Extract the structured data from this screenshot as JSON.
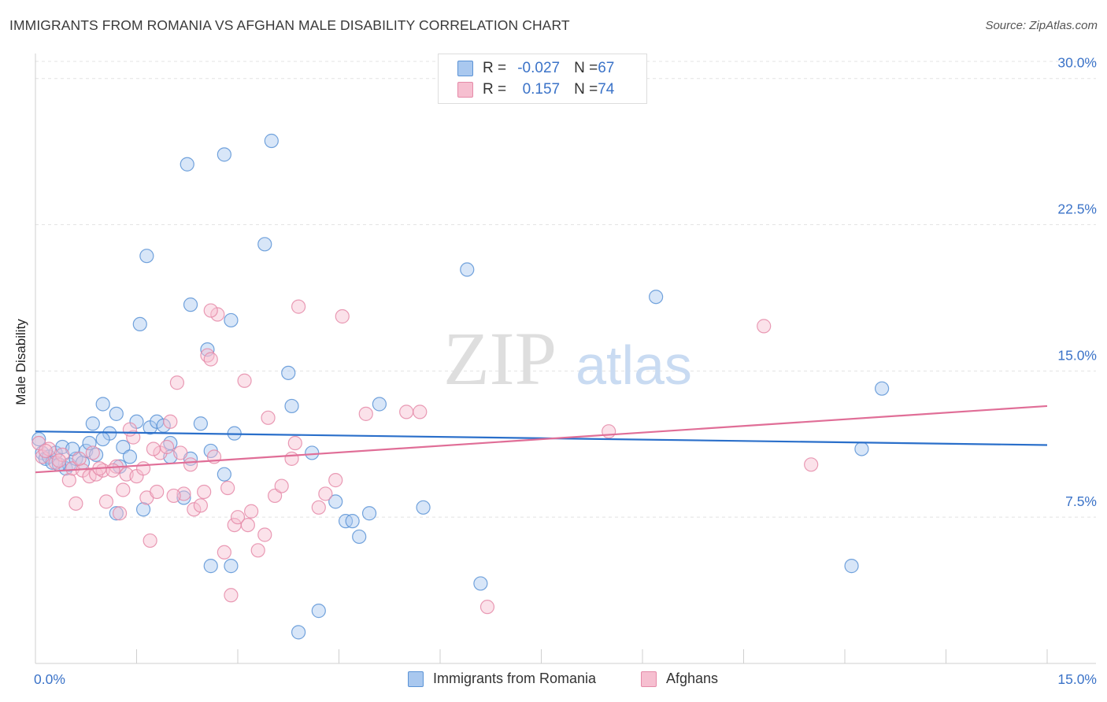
{
  "header": {
    "title": "IMMIGRANTS FROM ROMANIA VS AFGHAN MALE DISABILITY CORRELATION CHART",
    "source": "Source: ZipAtlas.com"
  },
  "watermark": {
    "zip": "ZIP",
    "atlas": "atlas"
  },
  "legend": {
    "rows": [
      {
        "r_label": "R = ",
        "r_value": "-0.027",
        "n_label": "N = ",
        "n_value": "67"
      },
      {
        "r_label": "R = ",
        "r_value": " 0.157",
        "n_label": "N = ",
        "n_value": "74"
      }
    ]
  },
  "chart_data": {
    "type": "scatter",
    "title": "IMMIGRANTS FROM ROMANIA VS AFGHAN MALE DISABILITY CORRELATION CHART",
    "xlabel": "",
    "ylabel": "Male Disability",
    "xlim": [
      0,
      15
    ],
    "ylim": [
      0,
      31.2
    ],
    "x_tick_labels": [
      "0.0%",
      "15.0%"
    ],
    "y_ticks": [
      7.5,
      15.0,
      22.5,
      30.0
    ],
    "y_tick_labels": [
      "7.5%",
      "15.0%",
      "22.5%",
      "30.0%"
    ],
    "grid": true,
    "legend_position": "top-center",
    "colors": {
      "romania_fill": "#a9c8ef",
      "romania_stroke": "#5b93d6",
      "romania_line": "#2a6fca",
      "afghan_fill": "#f6bfd0",
      "afghan_stroke": "#e58aa8",
      "afghan_line": "#e06e97",
      "tick_label": "#3b73c8"
    },
    "series": [
      {
        "name": "Immigrants from Romania",
        "trend": {
          "x": [
            0,
            15
          ],
          "y": [
            11.9,
            11.2
          ]
        },
        "points": [
          [
            0.05,
            11.5
          ],
          [
            0.1,
            10.8
          ],
          [
            0.15,
            10.5
          ],
          [
            0.2,
            10.6
          ],
          [
            0.25,
            10.3
          ],
          [
            0.3,
            10.8
          ],
          [
            0.4,
            11.1
          ],
          [
            0.45,
            10.0
          ],
          [
            0.5,
            10.2
          ],
          [
            0.6,
            10.5
          ],
          [
            0.7,
            10.3
          ],
          [
            0.75,
            10.9
          ],
          [
            0.8,
            11.3
          ],
          [
            0.9,
            10.7
          ],
          [
            1.0,
            13.3
          ],
          [
            1.1,
            11.8
          ],
          [
            1.2,
            12.8
          ],
          [
            1.25,
            10.1
          ],
          [
            1.3,
            11.1
          ],
          [
            1.5,
            12.4
          ],
          [
            1.55,
            17.4
          ],
          [
            1.65,
            20.9
          ],
          [
            1.7,
            12.1
          ],
          [
            1.8,
            12.4
          ],
          [
            2.0,
            11.3
          ],
          [
            2.0,
            10.6
          ],
          [
            2.2,
            8.5
          ],
          [
            2.3,
            10.5
          ],
          [
            2.3,
            18.4
          ],
          [
            2.25,
            25.6
          ],
          [
            2.45,
            12.3
          ],
          [
            2.55,
            16.1
          ],
          [
            2.6,
            10.9
          ],
          [
            2.8,
            9.7
          ],
          [
            2.8,
            26.1
          ],
          [
            2.9,
            17.6
          ],
          [
            2.95,
            11.8
          ],
          [
            3.4,
            21.5
          ],
          [
            3.5,
            26.8
          ],
          [
            3.75,
            14.9
          ],
          [
            3.8,
            13.2
          ],
          [
            4.1,
            10.8
          ],
          [
            4.2,
            2.7
          ],
          [
            4.45,
            8.3
          ],
          [
            4.6,
            7.3
          ],
          [
            4.7,
            7.3
          ],
          [
            4.8,
            6.5
          ],
          [
            4.95,
            7.7
          ],
          [
            5.1,
            13.3
          ],
          [
            5.75,
            8.0
          ],
          [
            6.4,
            20.2
          ],
          [
            6.6,
            4.1
          ],
          [
            9.2,
            18.8
          ],
          [
            12.25,
            11.0
          ],
          [
            12.55,
            14.1
          ],
          [
            12.1,
            5.0
          ],
          [
            1.2,
            7.7
          ],
          [
            1.6,
            7.9
          ],
          [
            1.0,
            11.5
          ],
          [
            2.9,
            5.0
          ],
          [
            2.6,
            5.0
          ],
          [
            3.9,
            1.6
          ],
          [
            0.35,
            10.2
          ],
          [
            0.55,
            11.0
          ],
          [
            1.4,
            10.6
          ],
          [
            1.9,
            12.2
          ],
          [
            0.85,
            12.3
          ]
        ]
      },
      {
        "name": "Afghans",
        "trend": {
          "x": [
            0,
            15
          ],
          "y": [
            9.8,
            13.2
          ]
        },
        "points": [
          [
            0.05,
            11.3
          ],
          [
            0.1,
            10.6
          ],
          [
            0.2,
            11.0
          ],
          [
            0.3,
            10.3
          ],
          [
            0.4,
            10.7
          ],
          [
            0.5,
            9.4
          ],
          [
            0.55,
            10.0
          ],
          [
            0.6,
            8.2
          ],
          [
            0.7,
            9.9
          ],
          [
            0.8,
            9.6
          ],
          [
            0.85,
            10.8
          ],
          [
            0.9,
            9.7
          ],
          [
            1.0,
            9.9
          ],
          [
            1.05,
            8.3
          ],
          [
            1.2,
            10.1
          ],
          [
            1.25,
            7.7
          ],
          [
            1.3,
            8.9
          ],
          [
            1.35,
            9.7
          ],
          [
            1.45,
            11.6
          ],
          [
            1.5,
            9.6
          ],
          [
            1.6,
            10.0
          ],
          [
            1.65,
            8.5
          ],
          [
            1.7,
            6.3
          ],
          [
            1.8,
            8.8
          ],
          [
            1.85,
            10.8
          ],
          [
            1.95,
            11.1
          ],
          [
            2.0,
            12.4
          ],
          [
            2.1,
            14.4
          ],
          [
            2.15,
            10.8
          ],
          [
            2.2,
            8.7
          ],
          [
            2.3,
            10.2
          ],
          [
            2.35,
            7.9
          ],
          [
            2.5,
            8.8
          ],
          [
            2.55,
            15.8
          ],
          [
            2.6,
            15.6
          ],
          [
            2.65,
            10.6
          ],
          [
            2.7,
            17.9
          ],
          [
            2.8,
            5.7
          ],
          [
            2.85,
            9.0
          ],
          [
            2.9,
            3.5
          ],
          [
            2.95,
            7.1
          ],
          [
            3.0,
            7.5
          ],
          [
            3.1,
            14.5
          ],
          [
            3.15,
            7.1
          ],
          [
            3.3,
            5.8
          ],
          [
            3.4,
            6.6
          ],
          [
            3.45,
            12.6
          ],
          [
            3.55,
            8.6
          ],
          [
            3.65,
            9.1
          ],
          [
            3.8,
            10.5
          ],
          [
            3.85,
            11.3
          ],
          [
            3.9,
            18.3
          ],
          [
            4.2,
            8.0
          ],
          [
            4.3,
            8.7
          ],
          [
            4.45,
            9.4
          ],
          [
            4.55,
            17.8
          ],
          [
            4.9,
            12.8
          ],
          [
            5.5,
            12.9
          ],
          [
            5.7,
            12.9
          ],
          [
            6.7,
            2.9
          ],
          [
            8.5,
            11.9
          ],
          [
            10.8,
            17.3
          ],
          [
            11.5,
            10.2
          ],
          [
            2.6,
            18.1
          ],
          [
            1.15,
            9.9
          ],
          [
            0.65,
            10.5
          ],
          [
            1.75,
            11.0
          ],
          [
            2.05,
            8.6
          ],
          [
            2.45,
            8.1
          ],
          [
            3.2,
            7.8
          ],
          [
            0.15,
            10.9
          ],
          [
            0.35,
            10.4
          ],
          [
            0.95,
            10.0
          ],
          [
            1.4,
            12.0
          ]
        ]
      }
    ]
  },
  "bottom_legend": {
    "items": [
      {
        "label": "Immigrants from Romania"
      },
      {
        "label": "Afghans"
      }
    ]
  }
}
